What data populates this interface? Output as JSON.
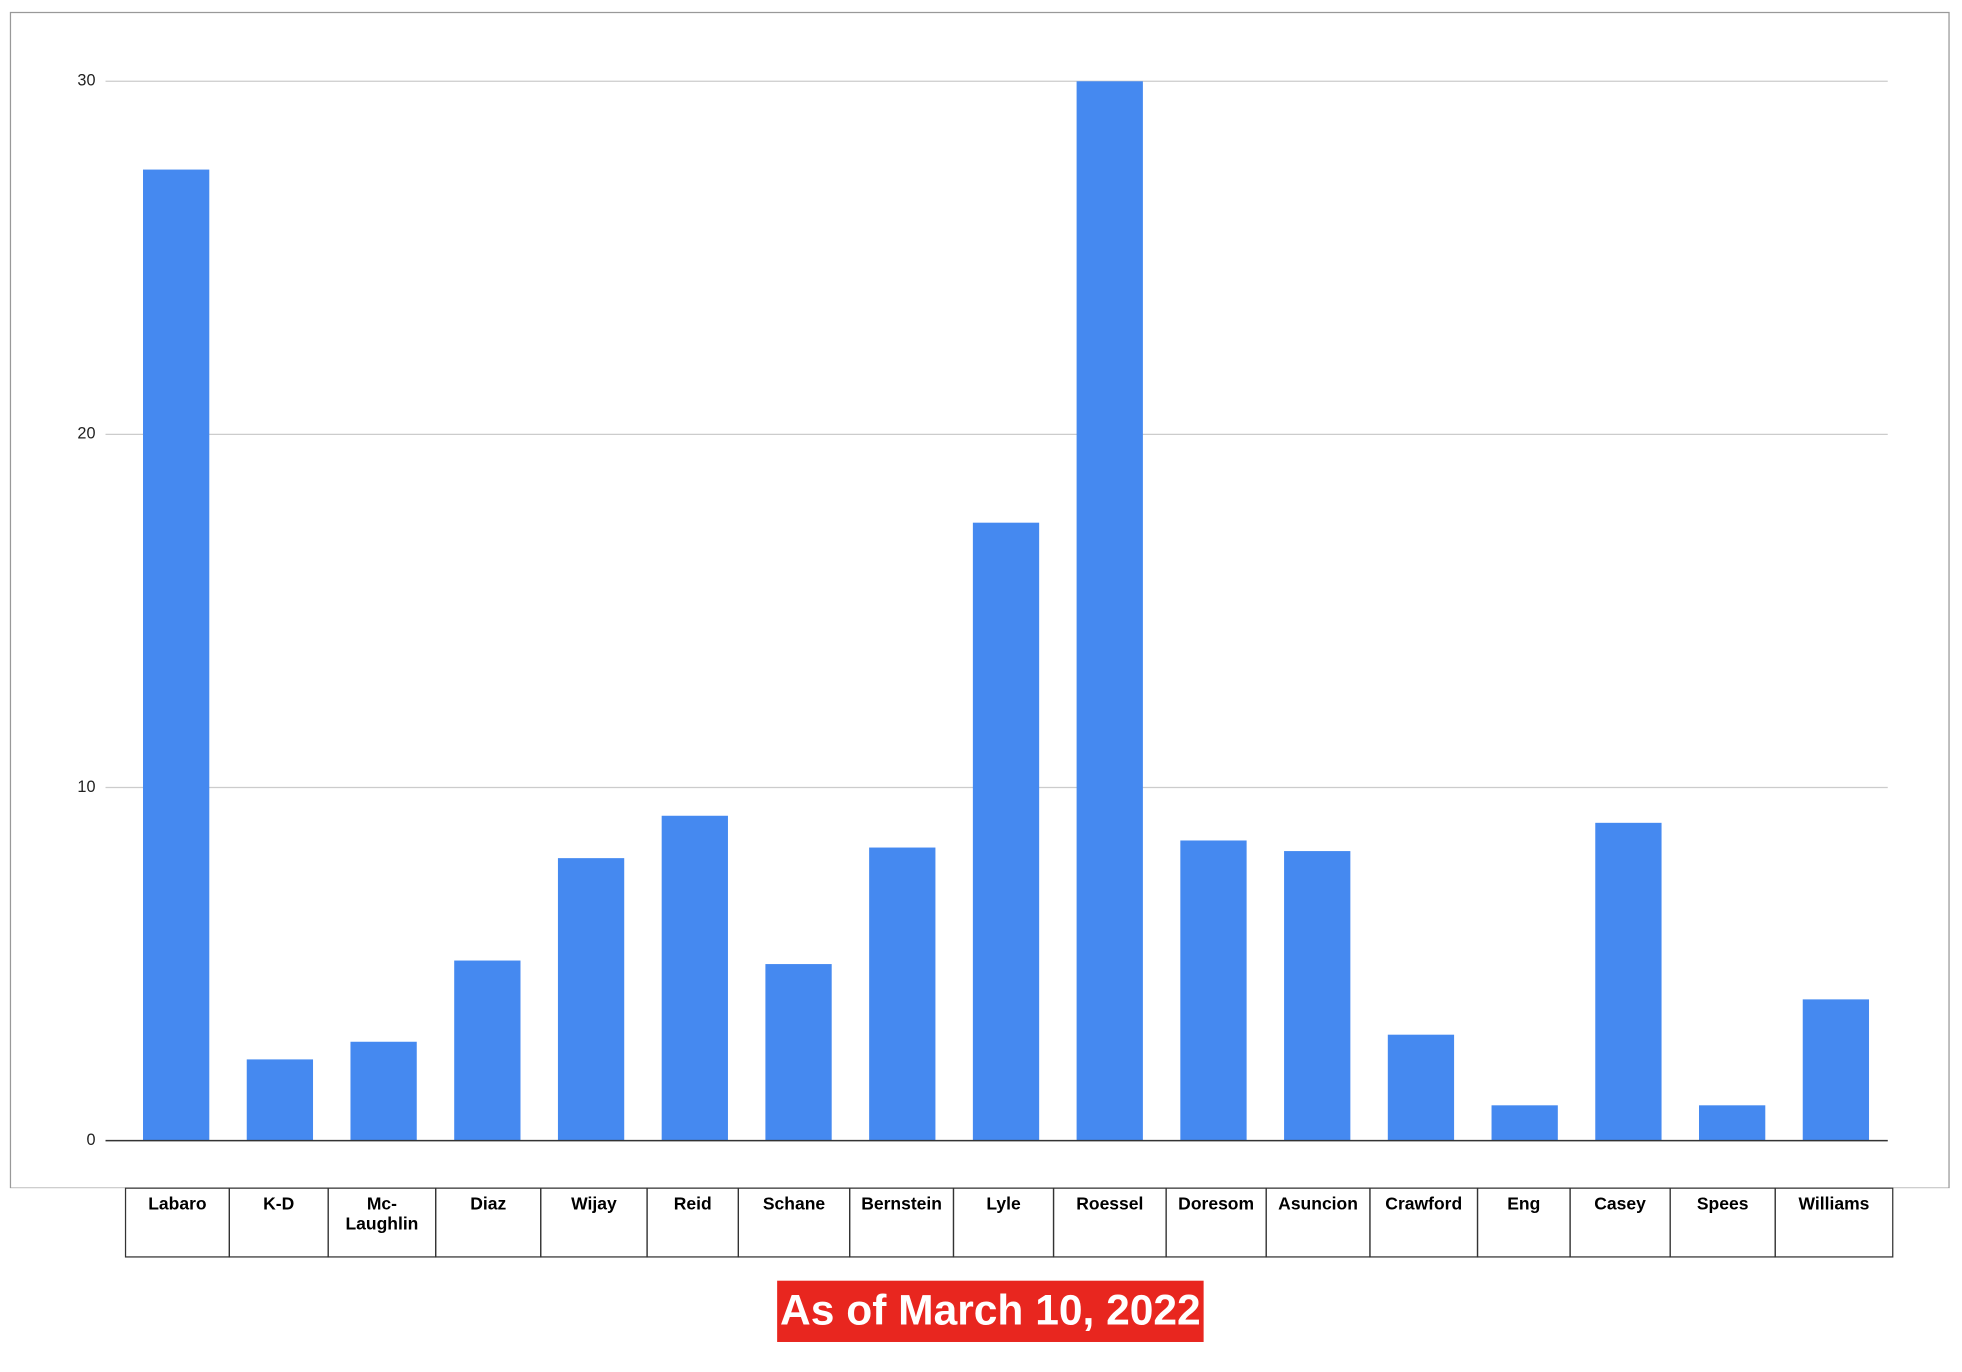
{
  "chart_data": {
    "type": "bar",
    "categories": [
      "Labaro",
      "K-D",
      "Mc-Laughlin",
      "Diaz",
      "Wijay",
      "Reid",
      "Schane",
      "Bernstein",
      "Lyle",
      "Roessel",
      "Doresom",
      "Asuncion",
      "Crawford",
      "Eng",
      "Casey",
      "Spees",
      "Williams"
    ],
    "values": [
      27.5,
      2.3,
      2.8,
      5.1,
      8.0,
      9.2,
      5.0,
      8.3,
      17.5,
      30,
      8.5,
      8.2,
      3.0,
      1.0,
      9.0,
      1.0,
      4.0
    ],
    "color": "#4589f0",
    "ylim": [
      0,
      30
    ],
    "yticks": [
      0,
      10,
      20,
      30
    ],
    "grid": true,
    "annotation": "As of March 10, 2022"
  }
}
